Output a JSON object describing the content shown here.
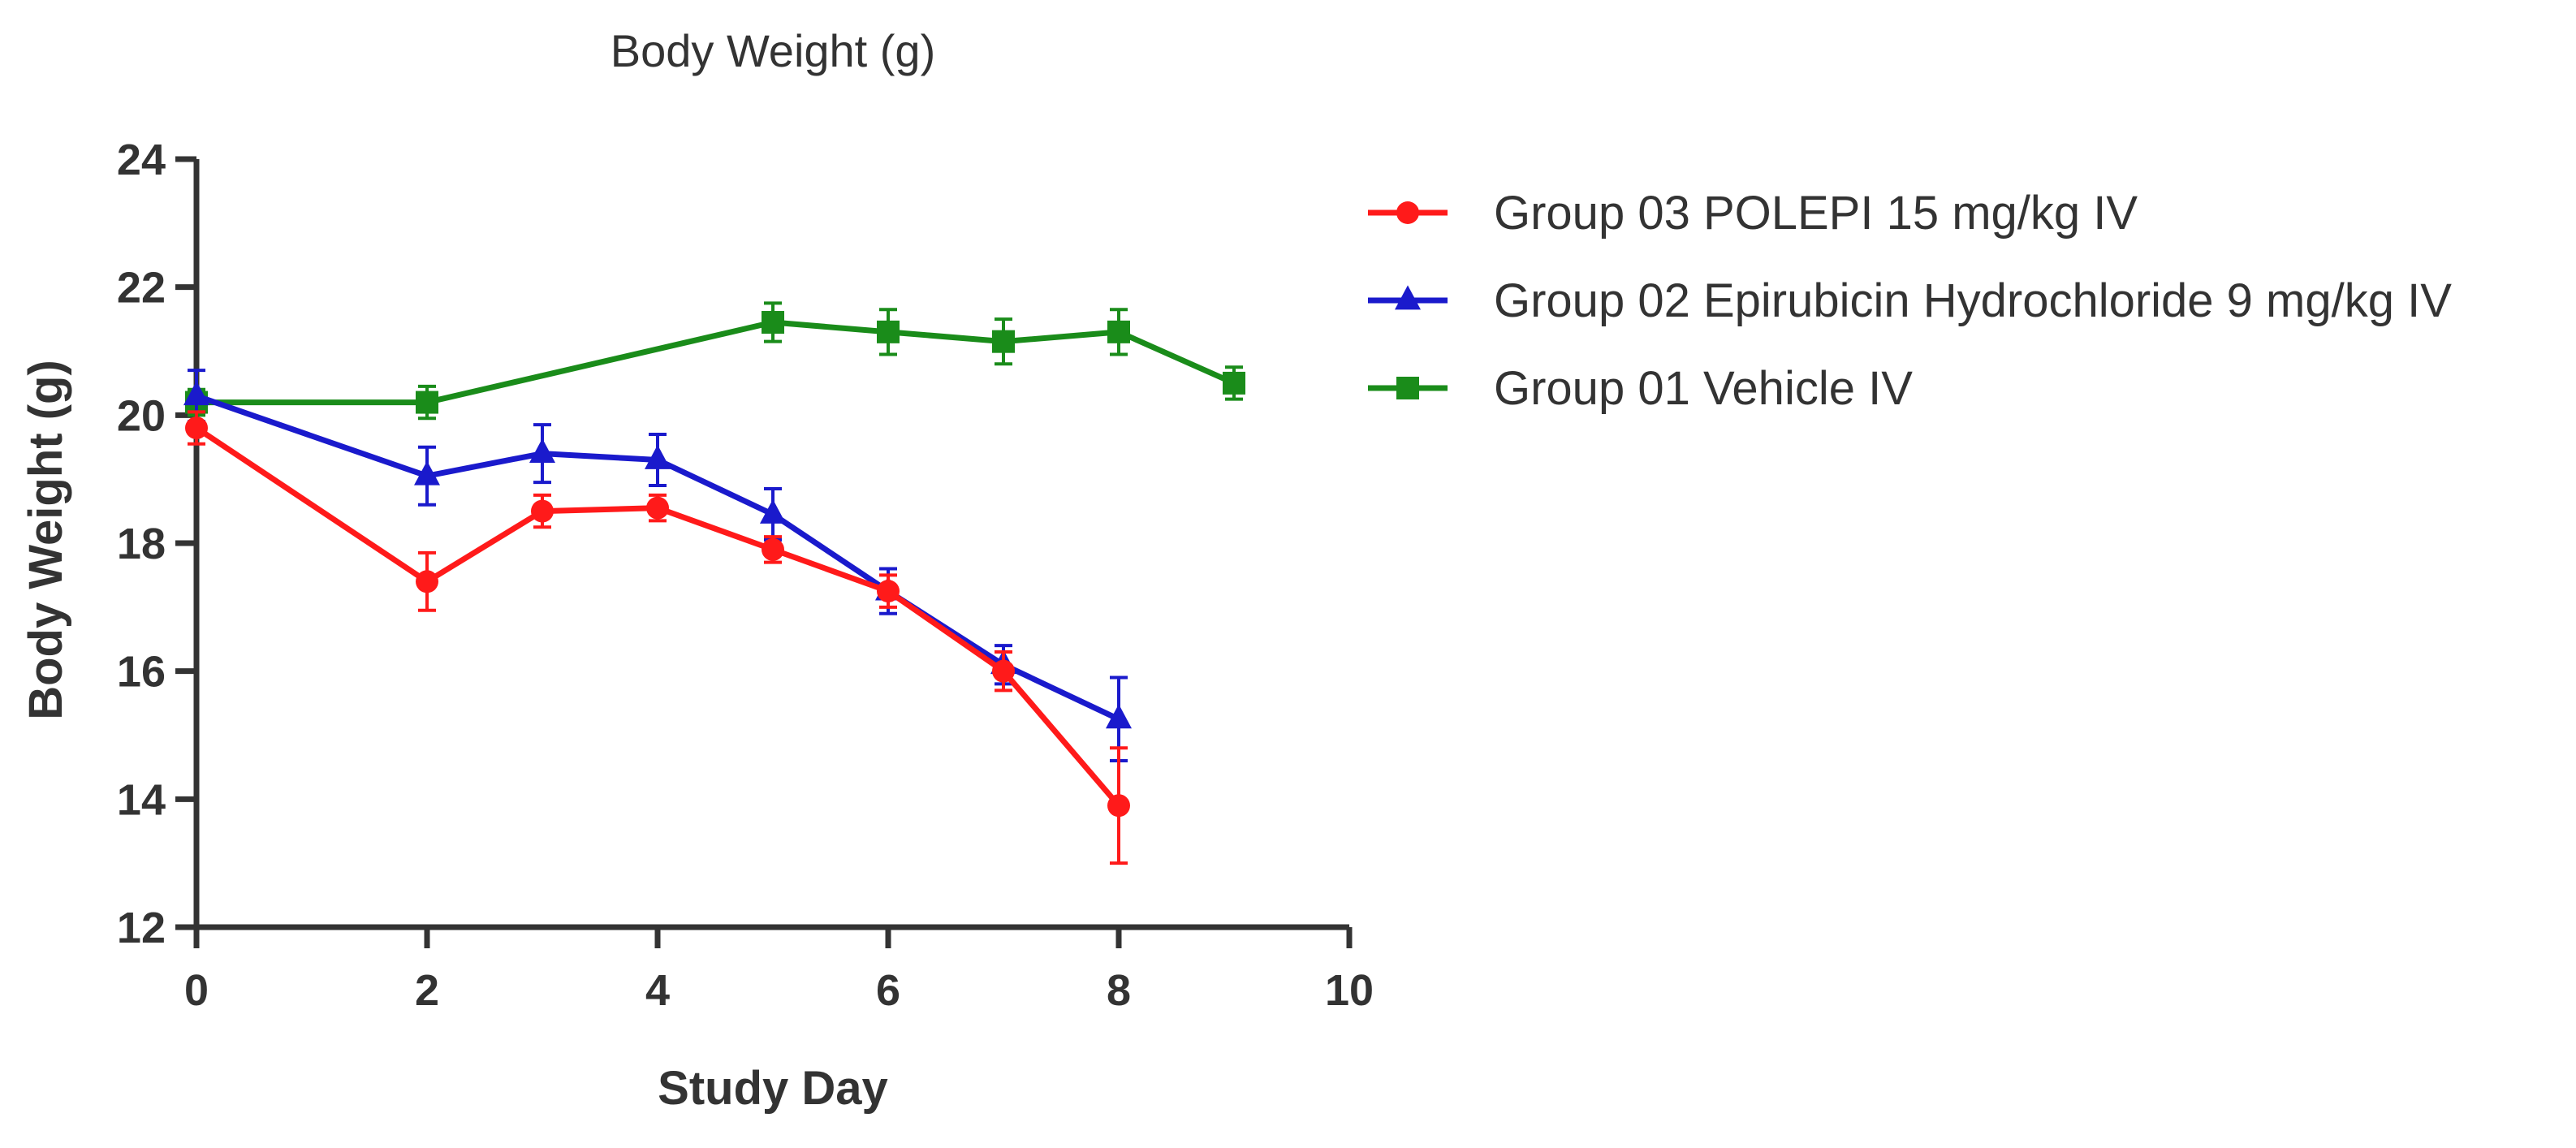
{
  "chart_data": {
    "type": "line",
    "title": "Body Weight (g)",
    "xlabel": "Study Day",
    "ylabel": "Body  Weight (g)",
    "xlim": [
      0,
      10
    ],
    "ylim": [
      12,
      24
    ],
    "xticks": [
      0,
      2,
      4,
      6,
      8,
      10
    ],
    "yticks": [
      12,
      14,
      16,
      18,
      20,
      22,
      24
    ],
    "grid": false,
    "legend_position": "right",
    "series": [
      {
        "name": "Group 03 POLEPI 15 mg/kg IV",
        "color": "#ff1a1a",
        "marker": "circle",
        "x": [
          0,
          2,
          3,
          4,
          5,
          6,
          7,
          8
        ],
        "y": [
          19.8,
          17.4,
          18.5,
          18.55,
          17.9,
          17.25,
          16.0,
          13.9
        ],
        "error": [
          0.25,
          0.45,
          0.25,
          0.2,
          0.2,
          0.25,
          0.3,
          0.9
        ]
      },
      {
        "name": "Group 02 Epirubicin Hydrochloride 9 mg/kg IV",
        "color": "#1a1acc",
        "marker": "triangle",
        "x": [
          0,
          2,
          3,
          4,
          5,
          6,
          7,
          8
        ],
        "y": [
          20.3,
          19.05,
          19.4,
          19.3,
          18.45,
          17.25,
          16.1,
          15.25
        ],
        "error": [
          0.4,
          0.45,
          0.45,
          0.4,
          0.4,
          0.35,
          0.3,
          0.65
        ]
      },
      {
        "name": "Group 01 Vehicle IV",
        "color": "#1a8c1a",
        "marker": "square",
        "x": [
          0,
          2,
          5,
          6,
          7,
          8,
          9
        ],
        "y": [
          20.2,
          20.2,
          21.45,
          21.3,
          21.15,
          21.3,
          20.5
        ],
        "error": [
          0.2,
          0.25,
          0.3,
          0.35,
          0.35,
          0.35,
          0.25
        ]
      }
    ]
  }
}
